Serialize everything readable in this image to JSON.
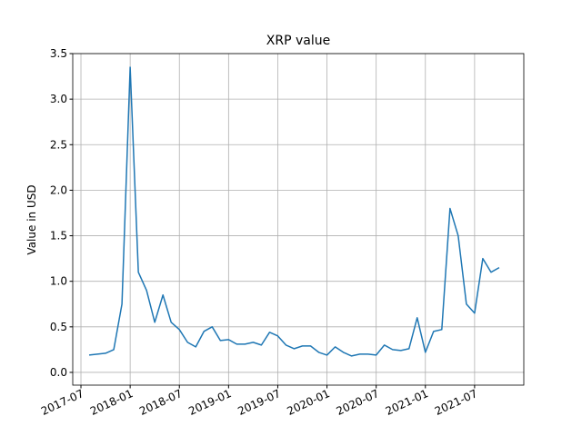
{
  "chart_data": {
    "type": "line",
    "title": "XRP value",
    "ylabel": "Value in USD",
    "x": [
      "2017-08",
      "2017-09",
      "2017-10",
      "2017-11",
      "2017-12",
      "2018-01",
      "2018-02",
      "2018-03",
      "2018-04",
      "2018-05",
      "2018-06",
      "2018-07",
      "2018-08",
      "2018-09",
      "2018-10",
      "2018-11",
      "2018-12",
      "2019-01",
      "2019-02",
      "2019-03",
      "2019-04",
      "2019-05",
      "2019-06",
      "2019-07",
      "2019-08",
      "2019-09",
      "2019-10",
      "2019-11",
      "2019-12",
      "2020-01",
      "2020-02",
      "2020-03",
      "2020-04",
      "2020-05",
      "2020-06",
      "2020-07",
      "2020-08",
      "2020-09",
      "2020-10",
      "2020-11",
      "2020-12",
      "2021-01",
      "2021-02",
      "2021-03",
      "2021-04",
      "2021-05",
      "2021-06",
      "2021-07",
      "2021-08",
      "2021-09",
      "2021-10"
    ],
    "values": [
      0.19,
      0.2,
      0.21,
      0.25,
      0.75,
      3.35,
      1.1,
      0.9,
      0.55,
      0.85,
      0.55,
      0.47,
      0.33,
      0.28,
      0.45,
      0.5,
      0.35,
      0.36,
      0.31,
      0.31,
      0.33,
      0.3,
      0.44,
      0.4,
      0.3,
      0.26,
      0.29,
      0.29,
      0.22,
      0.19,
      0.28,
      0.22,
      0.18,
      0.2,
      0.2,
      0.19,
      0.3,
      0.25,
      0.24,
      0.26,
      0.6,
      0.22,
      0.45,
      0.47,
      1.8,
      1.5,
      0.75,
      0.65,
      1.25,
      1.1,
      1.15
    ],
    "color": "#1f77b4",
    "xlim": [
      "2017-06",
      "2022-01"
    ],
    "xticks": [
      "2017-07",
      "2018-01",
      "2018-07",
      "2019-01",
      "2019-07",
      "2020-01",
      "2020-07",
      "2021-01",
      "2021-07"
    ],
    "ylim": [
      -0.14,
      3.5
    ],
    "yticks": [
      {
        "value": 0,
        "label": "0.0"
      },
      0.5,
      {
        "value": 1,
        "label": "1.0"
      },
      1.5,
      {
        "value": 2,
        "label": "2.0"
      },
      2.5,
      {
        "value": 3,
        "label": "3.0"
      },
      3.5
    ],
    "grid": true
  }
}
